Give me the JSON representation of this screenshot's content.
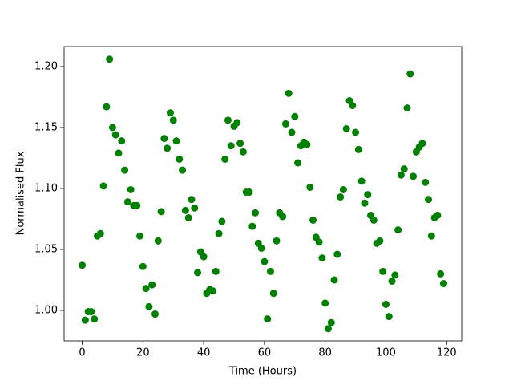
{
  "chart_data": {
    "type": "scatter",
    "xlabel": "Time (Hours)",
    "ylabel": "Normalised Flux",
    "color": "#008000",
    "x": [
      0,
      1,
      2,
      3,
      4,
      5,
      6,
      7,
      8,
      9,
      10,
      11,
      12,
      13,
      14,
      15,
      16,
      17,
      18,
      19,
      20,
      21,
      22,
      23,
      24,
      25,
      26,
      27,
      28,
      29,
      30,
      31,
      32,
      33,
      34,
      35,
      36,
      37,
      38,
      39,
      40,
      41,
      42,
      43,
      44,
      45,
      46,
      47,
      48,
      49,
      50,
      51,
      52,
      53,
      54,
      55,
      56,
      57,
      58,
      59,
      60,
      61,
      62,
      63,
      64,
      65,
      66,
      67,
      68,
      69,
      70,
      71,
      72,
      73,
      74,
      75,
      76,
      77,
      78,
      79,
      80,
      81,
      82,
      83,
      84,
      85,
      86,
      87,
      88,
      89,
      90,
      91,
      92,
      93,
      94,
      95,
      96,
      97,
      98,
      99,
      100,
      101,
      102,
      103,
      104,
      105,
      106,
      107,
      108,
      109,
      110,
      111,
      112,
      113,
      114,
      115,
      116,
      117,
      118,
      119
    ],
    "y": [
      1.037,
      0.992,
      0.999,
      0.999,
      0.993,
      1.061,
      1.063,
      1.102,
      1.167,
      1.206,
      1.15,
      1.144,
      1.129,
      1.139,
      1.115,
      1.089,
      1.099,
      1.086,
      1.086,
      1.061,
      1.036,
      1.018,
      1.003,
      1.021,
      0.997,
      1.057,
      1.081,
      1.141,
      1.133,
      1.162,
      1.156,
      1.139,
      1.124,
      1.115,
      1.082,
      1.076,
      1.091,
      1.084,
      1.031,
      1.048,
      1.044,
      1.014,
      1.017,
      1.016,
      1.032,
      1.063,
      1.073,
      1.124,
      1.156,
      1.135,
      1.151,
      1.154,
      1.137,
      1.13,
      1.097,
      1.097,
      1.069,
      1.08,
      1.055,
      1.051,
      1.04,
      0.993,
      1.032,
      1.014,
      1.057,
      1.08,
      1.077,
      1.153,
      1.178,
      1.146,
      1.159,
      1.121,
      1.135,
      1.138,
      1.136,
      1.101,
      1.074,
      1.06,
      1.056,
      1.043,
      1.006,
      0.985,
      0.99,
      1.025,
      1.046,
      1.093,
      1.099,
      1.149,
      1.172,
      1.168,
      1.146,
      1.132,
      1.106,
      1.088,
      1.095,
      1.078,
      1.074,
      1.055,
      1.057,
      1.032,
      1.005,
      0.995,
      1.024,
      1.029,
      1.066,
      1.111,
      1.116,
      1.166,
      1.194,
      1.11,
      1.13,
      1.134,
      1.137,
      1.105,
      1.091,
      1.061,
      1.076,
      1.078,
      1.03,
      1.022
    ],
    "xlim": [
      -5.95,
      124.95
    ],
    "xticks": [
      0,
      20,
      40,
      60,
      80,
      100,
      120
    ],
    "ylim": [
      0.975,
      1.2164
    ],
    "yticks": [
      {
        "value": 1.0,
        "label": "1.00"
      },
      {
        "value": 1.05,
        "label": "1.05"
      },
      {
        "value": 1.1,
        "label": "1.10"
      },
      {
        "value": 1.15,
        "label": "1.15"
      },
      {
        "value": 1.2,
        "label": "1.20"
      }
    ]
  }
}
